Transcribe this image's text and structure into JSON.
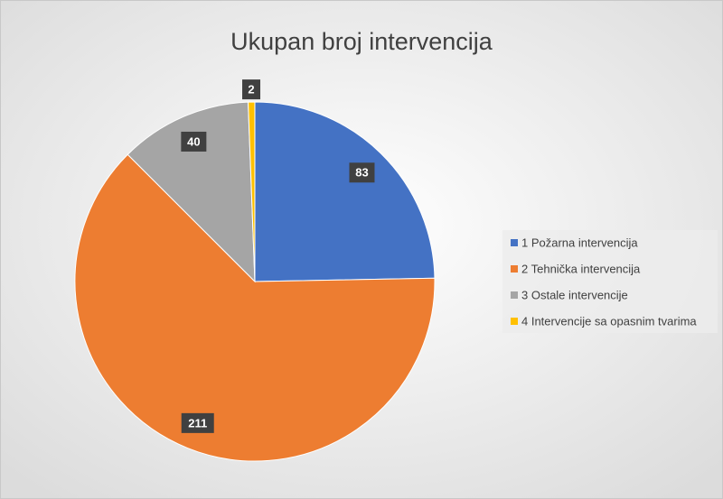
{
  "chart_data": {
    "type": "pie",
    "title": "Ukupan broj intervencija",
    "categories": [
      "1 Požarna intervencija",
      "2 Tehnička intervencija",
      "3 Ostale intervencije",
      "4 Intervencije sa opasnim tvarima"
    ],
    "values": [
      83,
      211,
      40,
      2
    ],
    "colors": [
      "#4472c4",
      "#ed7d31",
      "#a5a5a5",
      "#ffc000"
    ],
    "legend": "right"
  }
}
